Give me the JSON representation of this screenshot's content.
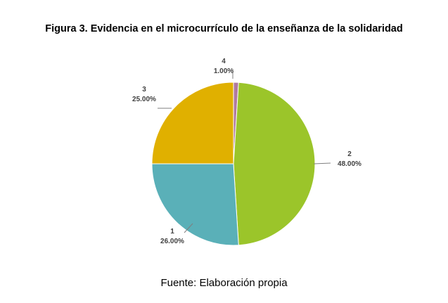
{
  "figure": {
    "title": "Figura 3. Evidencia en el microcurrículo de la enseñanza de la solidaridad",
    "source": "Fuente: Elaboración propia"
  },
  "chart_data": {
    "type": "pie",
    "slices": [
      {
        "category": "4",
        "percent": 1.0,
        "label": "1.00%",
        "color": "#b07aa1"
      },
      {
        "category": "2",
        "percent": 48.0,
        "label": "48.00%",
        "color": "#9bc52a"
      },
      {
        "category": "1",
        "percent": 26.0,
        "label": "26.00%",
        "color": "#5ab0b8"
      },
      {
        "category": "3",
        "percent": 25.0,
        "label": "25.00%",
        "color": "#e0b000"
      }
    ],
    "start_angle": "top",
    "direction": "clockwise",
    "legend": "none"
  }
}
